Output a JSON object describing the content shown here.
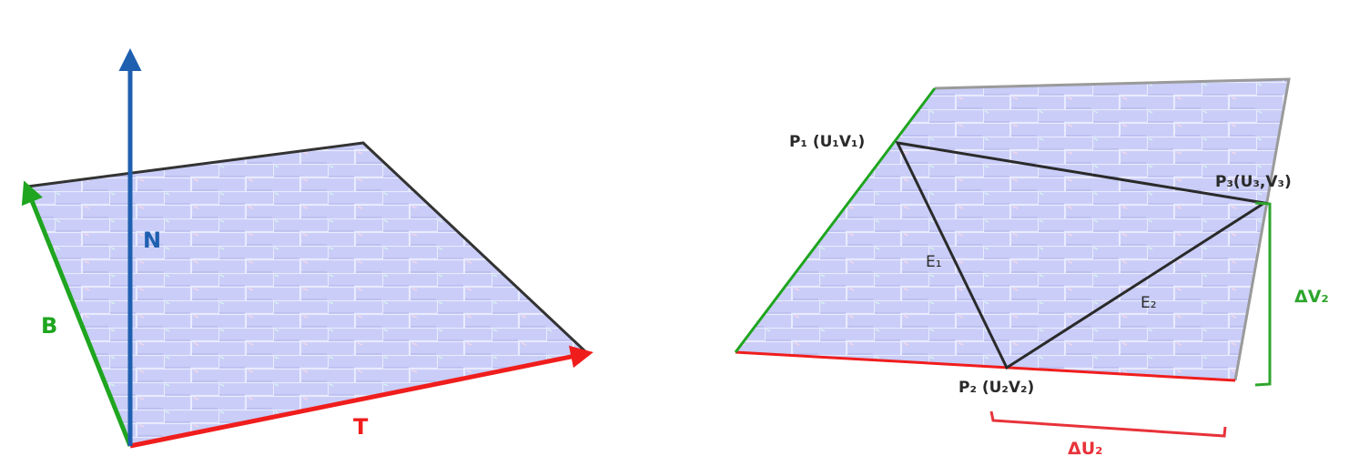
{
  "left_diagram": {
    "normal_label": "N",
    "bitangent_label": "B",
    "tangent_label": "T"
  },
  "right_diagram": {
    "p1_label": "P₁ (U₁V₁)",
    "p2_label": "P₂ (U₂V₂)",
    "p3_label": "P₃(U₃,V₃)",
    "e1_label": "E₁",
    "e2_label": "E₂",
    "delta_u_label": "ΔU₂",
    "delta_v_label": "ΔV₂"
  },
  "colors": {
    "normal": "#1f5fb0",
    "bitangent": "#1fa51f",
    "tangent": "#f01d1d",
    "plane_fill": "#c9cdf7",
    "brick_line": "#e6e8ff",
    "outline_dark": "#333333",
    "outline_gray": "#9a9a9a",
    "triangle": "#2a2a2a",
    "delta_u": "#e8323a",
    "delta_v": "#2ea52e"
  }
}
